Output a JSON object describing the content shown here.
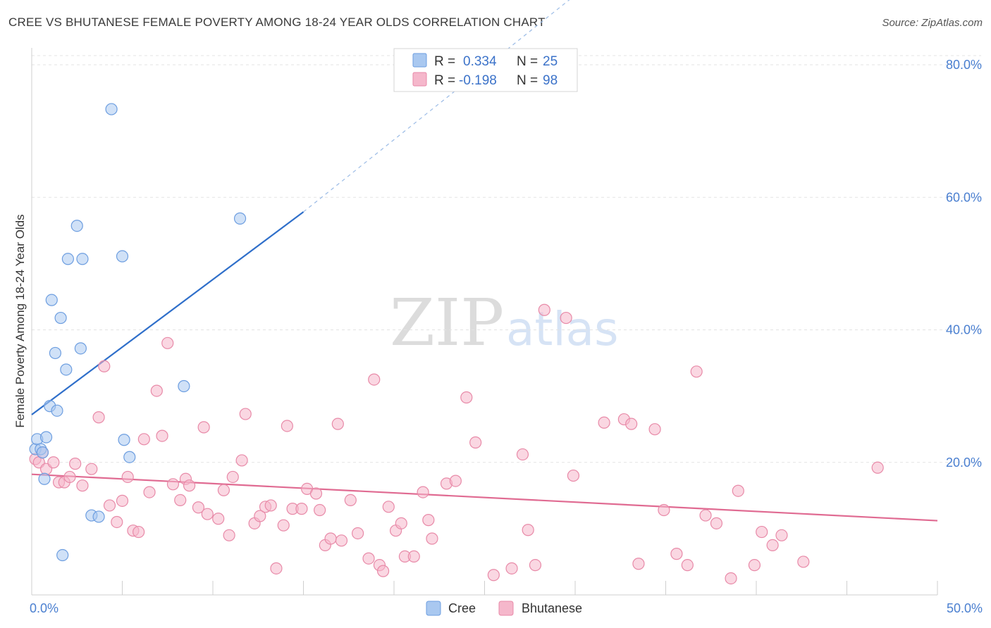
{
  "header": {
    "title": "CREE VS BHUTANESE FEMALE POVERTY AMONG 18-24 YEAR OLDS CORRELATION CHART",
    "source": "Source: ZipAtlas.com"
  },
  "watermark": {
    "zip": "ZIP",
    "atlas": "atlas"
  },
  "legend": {
    "rows": [
      {
        "r_label": "R =",
        "r_value": "0.334",
        "n_label": "N =",
        "n_value": "25",
        "color": "#a9c8f0"
      },
      {
        "r_label": "R =",
        "r_value": "-0.198",
        "n_label": "N =",
        "n_value": "98",
        "color": "#f5b7cb"
      }
    ]
  },
  "bottom_legend": [
    {
      "name": "Cree",
      "color": "#a9c8f0"
    },
    {
      "name": "Bhutanese",
      "color": "#f5b7cb"
    }
  ],
  "chart_data": {
    "type": "scatter",
    "title": "CREE VS BHUTANESE FEMALE POVERTY AMONG 18-24 YEAR OLDS CORRELATION CHART",
    "xlabel": "",
    "ylabel": "Female Poverty Among 18-24 Year Olds",
    "xlim": [
      0,
      50
    ],
    "ylim": [
      0,
      80
    ],
    "x_tick_labels": [
      "0.0%",
      "50.0%"
    ],
    "y_ticks": [
      20,
      40,
      60,
      80
    ],
    "y_tick_labels": [
      "20.0%",
      "40.0%",
      "60.0%",
      "80.0%"
    ],
    "grid": true,
    "legend_position": "top-center",
    "series": [
      {
        "name": "Cree",
        "color": "#a9c8f0",
        "stroke": "#6d9ee0",
        "points": [
          [
            0.2,
            22.0
          ],
          [
            0.3,
            23.5
          ],
          [
            0.5,
            22.0
          ],
          [
            0.7,
            17.5
          ],
          [
            0.8,
            23.8
          ],
          [
            1.0,
            28.5
          ],
          [
            1.1,
            44.5
          ],
          [
            1.3,
            36.5
          ],
          [
            1.4,
            27.8
          ],
          [
            1.6,
            41.8
          ],
          [
            1.7,
            6.0
          ],
          [
            1.9,
            34.0
          ],
          [
            2.0,
            50.7
          ],
          [
            2.5,
            55.7
          ],
          [
            2.7,
            37.2
          ],
          [
            2.8,
            50.7
          ],
          [
            3.3,
            12.0
          ],
          [
            3.7,
            11.8
          ],
          [
            4.4,
            73.3
          ],
          [
            5.0,
            51.1
          ],
          [
            5.1,
            23.4
          ],
          [
            5.4,
            20.8
          ],
          [
            8.4,
            31.5
          ],
          [
            11.5,
            56.8
          ],
          [
            0.6,
            21.5
          ]
        ],
        "trend": {
          "x": [
            0,
            15
          ],
          "y": [
            27.2,
            57.8
          ],
          "dashed_to": [
            30,
            90.5
          ]
        }
      },
      {
        "name": "Bhutanese",
        "color": "#f5b7cb",
        "stroke": "#e88aa8",
        "points": [
          [
            0.2,
            20.5
          ],
          [
            0.4,
            20.0
          ],
          [
            0.6,
            21.5
          ],
          [
            0.8,
            19.0
          ],
          [
            1.2,
            20.0
          ],
          [
            1.5,
            17.0
          ],
          [
            1.8,
            17.0
          ],
          [
            2.1,
            17.8
          ],
          [
            2.4,
            19.8
          ],
          [
            2.8,
            16.5
          ],
          [
            3.3,
            19.0
          ],
          [
            3.7,
            26.8
          ],
          [
            4.0,
            34.5
          ],
          [
            4.3,
            13.5
          ],
          [
            4.7,
            11.0
          ],
          [
            5.0,
            14.2
          ],
          [
            5.3,
            17.8
          ],
          [
            5.6,
            9.7
          ],
          [
            5.9,
            9.5
          ],
          [
            6.2,
            23.5
          ],
          [
            6.5,
            15.5
          ],
          [
            6.9,
            30.8
          ],
          [
            7.2,
            24.0
          ],
          [
            7.5,
            38.0
          ],
          [
            7.8,
            16.7
          ],
          [
            8.2,
            14.3
          ],
          [
            8.5,
            17.5
          ],
          [
            8.7,
            16.5
          ],
          [
            9.2,
            13.2
          ],
          [
            9.5,
            25.3
          ],
          [
            9.7,
            12.2
          ],
          [
            10.3,
            11.5
          ],
          [
            10.6,
            15.8
          ],
          [
            10.9,
            9.0
          ],
          [
            11.1,
            17.8
          ],
          [
            11.6,
            20.3
          ],
          [
            11.8,
            27.3
          ],
          [
            12.3,
            10.8
          ],
          [
            12.6,
            11.9
          ],
          [
            12.9,
            13.3
          ],
          [
            13.2,
            13.5
          ],
          [
            13.5,
            4.0
          ],
          [
            13.9,
            10.5
          ],
          [
            14.1,
            25.5
          ],
          [
            14.4,
            13.0
          ],
          [
            14.9,
            13.0
          ],
          [
            15.2,
            16.0
          ],
          [
            15.7,
            15.3
          ],
          [
            15.9,
            12.8
          ],
          [
            16.2,
            7.5
          ],
          [
            16.5,
            8.5
          ],
          [
            16.9,
            25.8
          ],
          [
            17.1,
            8.2
          ],
          [
            17.6,
            14.3
          ],
          [
            18.0,
            9.3
          ],
          [
            18.6,
            5.5
          ],
          [
            18.9,
            32.5
          ],
          [
            19.2,
            4.5
          ],
          [
            19.4,
            3.6
          ],
          [
            19.7,
            13.3
          ],
          [
            20.1,
            9.7
          ],
          [
            20.4,
            10.8
          ],
          [
            20.6,
            5.8
          ],
          [
            21.1,
            5.8
          ],
          [
            21.6,
            15.5
          ],
          [
            21.9,
            11.3
          ],
          [
            22.1,
            8.5
          ],
          [
            22.9,
            16.8
          ],
          [
            23.4,
            17.2
          ],
          [
            24.0,
            29.8
          ],
          [
            24.5,
            23.0
          ],
          [
            25.5,
            3.0
          ],
          [
            26.5,
            4.0
          ],
          [
            27.1,
            21.2
          ],
          [
            27.4,
            9.8
          ],
          [
            27.8,
            4.5
          ],
          [
            28.3,
            43.0
          ],
          [
            29.5,
            41.8
          ],
          [
            29.9,
            18.0
          ],
          [
            31.6,
            26.0
          ],
          [
            32.7,
            26.5
          ],
          [
            33.1,
            25.8
          ],
          [
            33.5,
            4.7
          ],
          [
            34.4,
            25.0
          ],
          [
            34.9,
            12.8
          ],
          [
            35.6,
            6.2
          ],
          [
            36.2,
            4.5
          ],
          [
            36.7,
            33.7
          ],
          [
            37.2,
            12.0
          ],
          [
            37.8,
            10.8
          ],
          [
            38.6,
            2.5
          ],
          [
            39.0,
            15.7
          ],
          [
            39.9,
            4.5
          ],
          [
            40.3,
            9.5
          ],
          [
            40.9,
            7.5
          ],
          [
            41.4,
            9.0
          ],
          [
            42.6,
            5.0
          ],
          [
            46.7,
            19.2
          ]
        ],
        "trend": {
          "x": [
            0,
            50
          ],
          "y": [
            18.2,
            11.2
          ]
        }
      }
    ]
  }
}
